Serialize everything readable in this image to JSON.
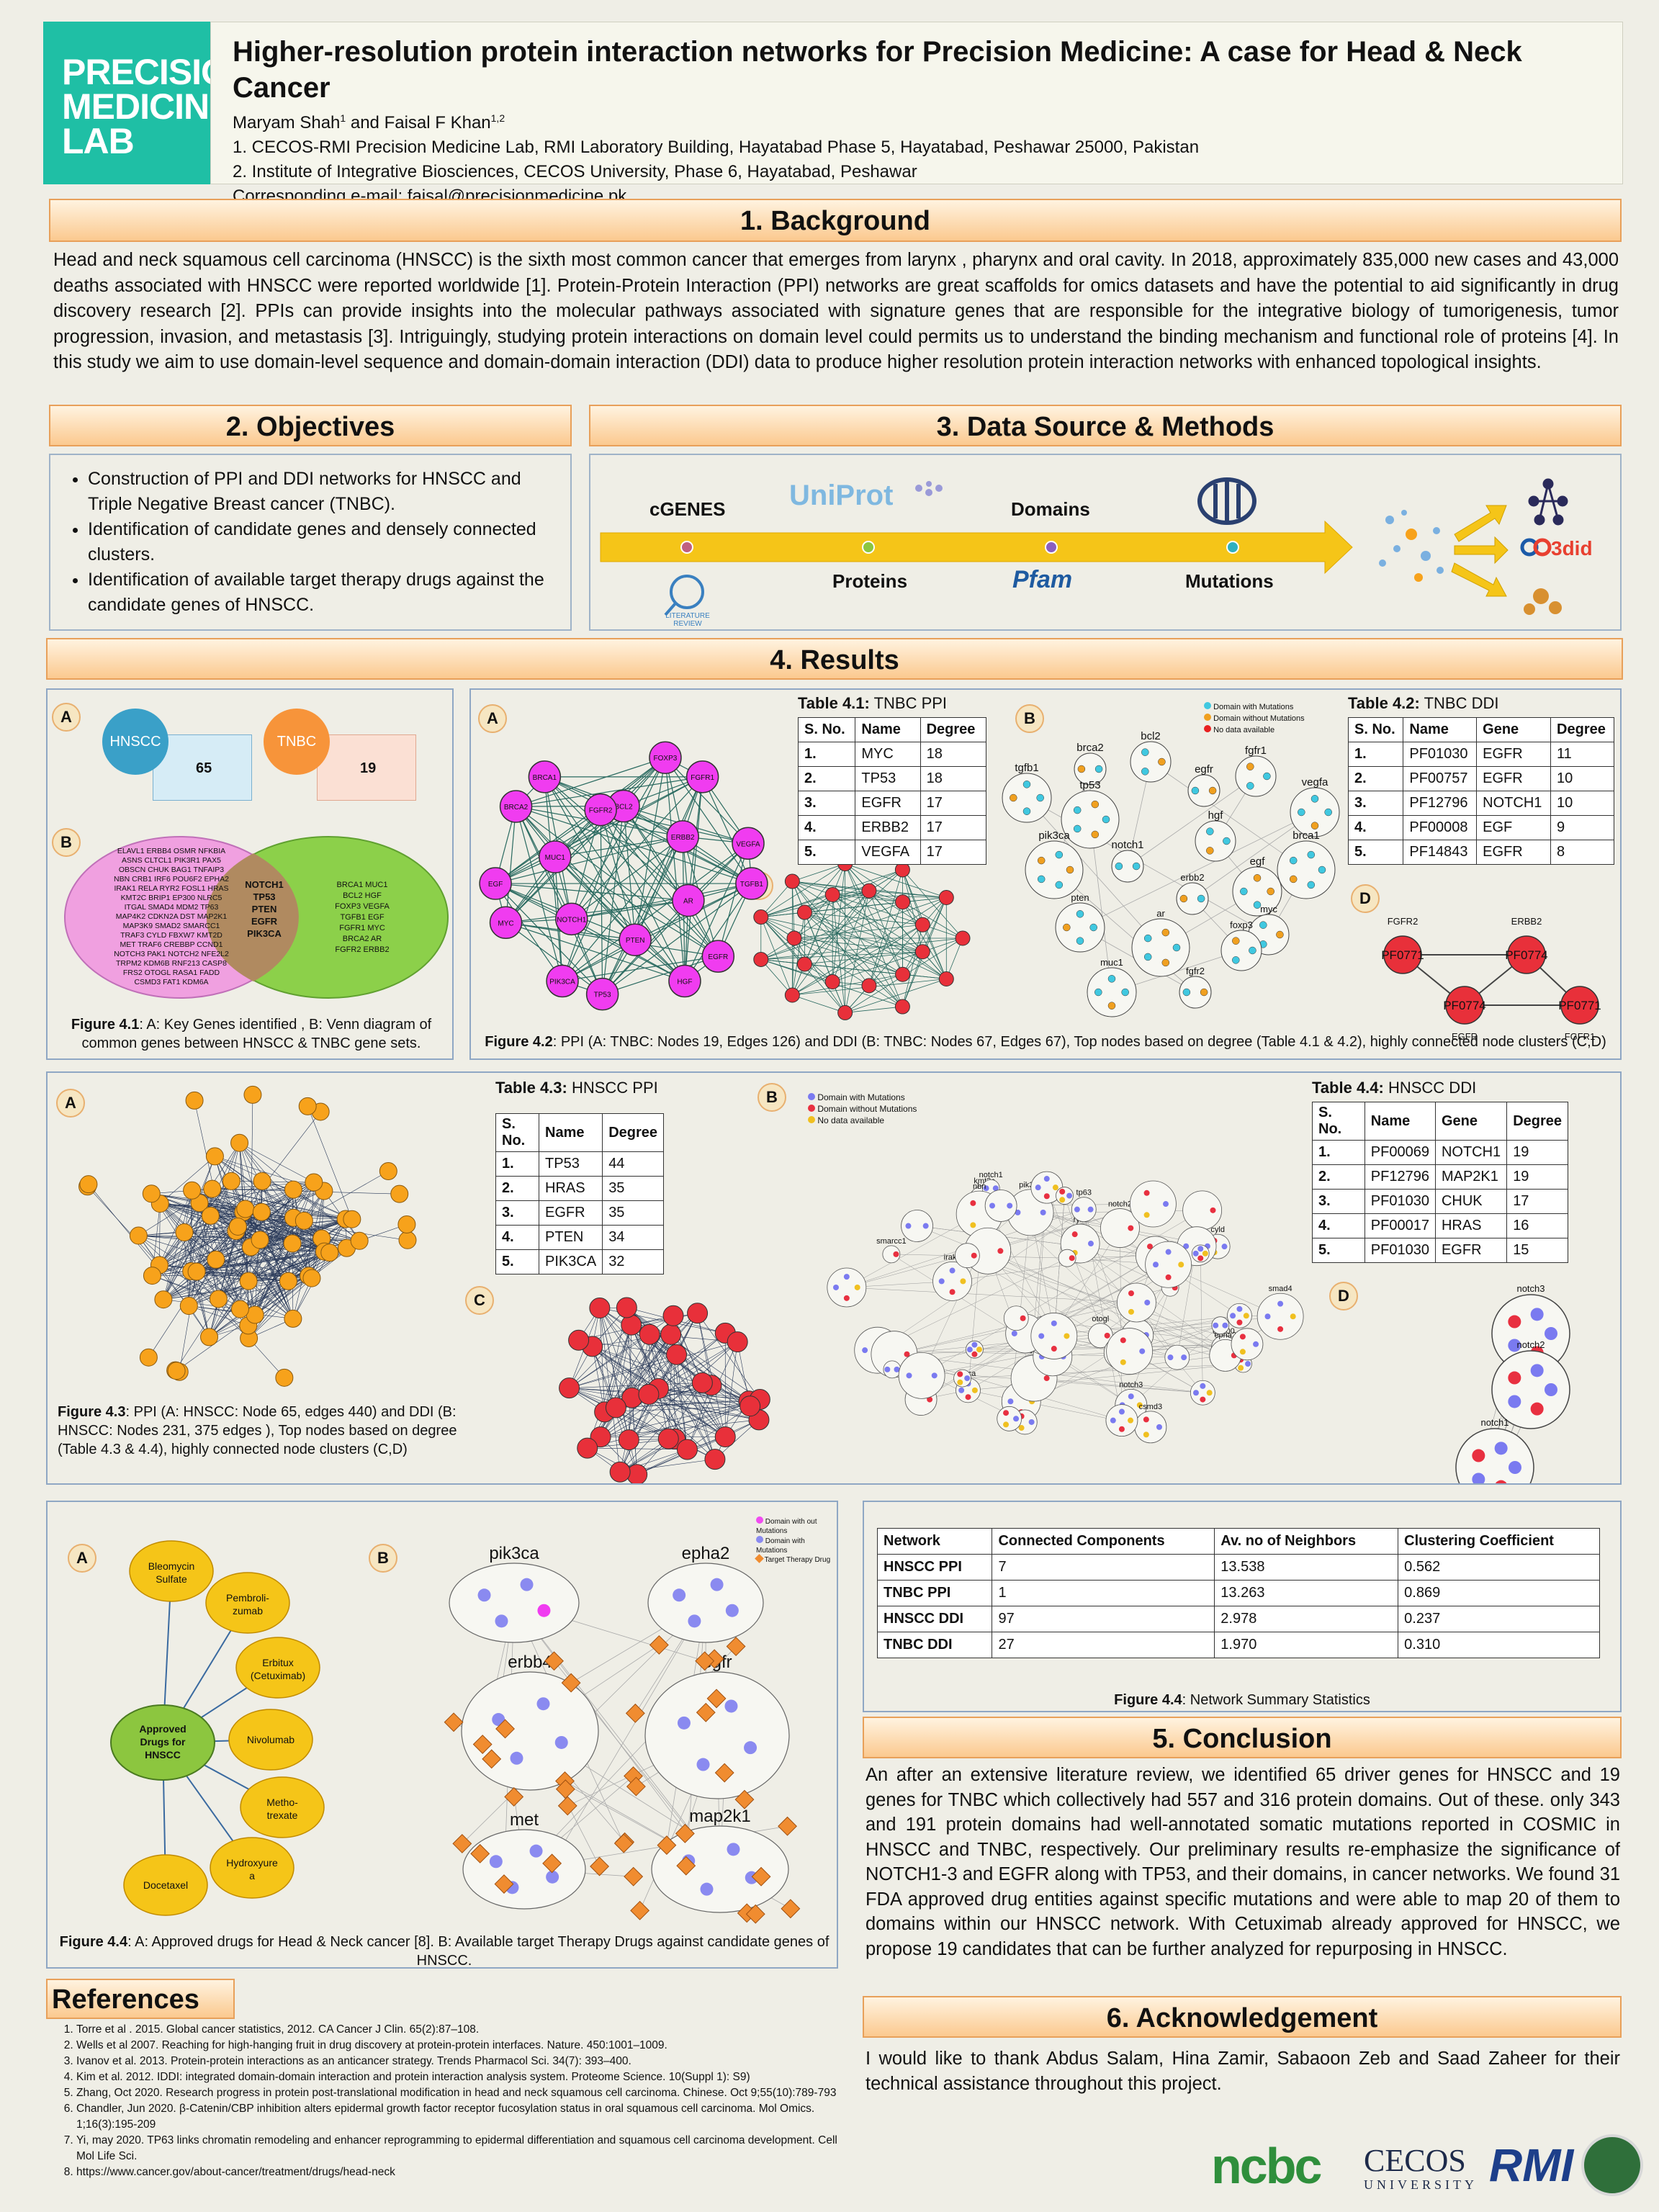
{
  "logo": [
    "PRECISION",
    "MEDICINE",
    "LAB"
  ],
  "header": {
    "title": "Higher-resolution protein interaction networks for Precision Medicine: A case for Head & Neck Cancer",
    "authors": "Maryam Shah",
    "authors_sup1": "1",
    "authors_mid": " and Faisal F Khan",
    "authors_sup2": "1,2",
    "affil1": "1. CECOS-RMI Precision Medicine Lab, RMI Laboratory Building, Hayatabad Phase 5, Hayatabad, Peshawar 25000, Pakistan",
    "affil2": "2. Institute of Integrative Biosciences, CECOS University, Phase 6, Hayatabad, Peshawar",
    "email": "Corresponding e-mail: faisal@precisionmedicine.pk"
  },
  "background": {
    "heading": "1. Background",
    "text": "Head and neck squamous cell carcinoma (HNSCC) is the sixth most common cancer that emerges from larynx , pharynx and oral cavity. In 2018, approximately 835,000 new cases and 43,000 deaths associated with HNSCC were reported worldwide [1]. Protein-Protein Interaction (PPI) networks are great scaffolds for omics datasets and have the potential to aid significantly in drug discovery research [2]. PPIs can provide insights into the molecular pathways associated with signature genes that are responsible for the integrative biology of tumorigenesis, tumor progression, invasion, and metastasis [3]. Intriguingly, studying protein interactions on domain level could permits us to understand the binding mechanism and functional role of proteins [4]. In this study we aim to use domain-level sequence and domain-domain interaction (DDI) data to produce higher resolution protein interaction networks with enhanced topological insights."
  },
  "objectives": {
    "heading": "2. Objectives",
    "items": [
      "Construction of PPI and DDI networks for HNSCC and Triple Negative Breast cancer (TNBC).",
      "Identification of candidate genes and densely connected clusters.",
      "Identification of available target therapy drugs against the candidate genes of HNSCC."
    ]
  },
  "methods": {
    "heading": "3. Data Source & Methods",
    "cgenes": "cGENES",
    "uniprot": "UniProt",
    "domains": "Domains",
    "proteins": "Proteins",
    "pfam": "Pfam",
    "mutations": "Mutations",
    "lit": "LITERATURE REVIEW",
    "did": "3did"
  },
  "results": {
    "heading": "4. Results"
  },
  "fig41": {
    "hnscc": "HNSCC",
    "tnbc": "TNBC",
    "n65": "65",
    "n19": "19",
    "hnscc_genes": [
      "ELAVL1 ERBB4 OSMR NFKBIA",
      "ASNS CLTCL1 PIK3R1 PAX5",
      "OBSCN CHUK BAG1 TNFAIP3",
      "NBN CRB1 IRF6 POU6F2 EPHA2",
      "IRAK1 RELA RYR2 FOSL1 HRAS",
      "KMT2C BRIP1 EP300 NLRC5",
      "ITGAL SMAD4 MDM2 TP63",
      "MAP4K2 CDKN2A DST MAP2K1",
      "MAP3K9 SMAD2 SMARCC1",
      "TRAF3 CYLD FBXW7 KMT2D",
      "MET TRAF6 CREBBP CCND1",
      "NOTCH3 PAK1 NOTCH2 NFE2L2",
      "TRPM2 KDM6B RNF213 CASP8",
      "FRS2 OTOGL RASA1 FADD",
      "CSMD3 FAT1 KDM6A"
    ],
    "common": [
      "NOTCH1",
      "TP53",
      "PTEN",
      "EGFR",
      "PIK3CA"
    ],
    "tnbc_genes": [
      "BRCA1 MUC1",
      "BCL2 HGF",
      "FOXP3 VEGFA",
      "TGFB1 EGF",
      "FGFR1 MYC",
      "BRCA2 AR",
      "FGFR2 ERBB2"
    ],
    "cap_b": "Figure 4.1",
    "cap": ": A: Key Genes identified , B: Venn diagram of common genes between HNSCC & TNBC gene sets."
  },
  "tnbc_nodes": [
    "BCL2",
    "FOXP3",
    "FGFR1",
    "ERBB2",
    "VEGFA",
    "TGFB1",
    "AR",
    "EGFR",
    "HGF",
    "PTEN",
    "TP53",
    "PIK3CA",
    "NOTCH1",
    "MYC",
    "EGF",
    "MUC1",
    "BRCA2",
    "BRCA1",
    "FGFR2"
  ],
  "table41": {
    "title_b": "Table 4.1:",
    "title": " TNBC PPI",
    "head": [
      "S. No.",
      "Name",
      "Degree"
    ],
    "rows": [
      [
        "1.",
        "MYC",
        "18"
      ],
      [
        "2.",
        "TP53",
        "18"
      ],
      [
        "3.",
        "EGFR",
        "17"
      ],
      [
        "4.",
        "ERBB2",
        "17"
      ],
      [
        "5.",
        "VEGFA",
        "17"
      ]
    ]
  },
  "table42": {
    "title_b": "Table 4.2:",
    "title": " TNBC DDI",
    "head": [
      "S. No.",
      "Name",
      "Gene",
      "Degree"
    ],
    "rows": [
      [
        "1.",
        "PF01030",
        "EGFR",
        "11"
      ],
      [
        "2.",
        "PF00757",
        "EGFR",
        "10"
      ],
      [
        "3.",
        "PF12796",
        "NOTCH1",
        "10"
      ],
      [
        "4.",
        "PF00008",
        "EGF",
        "9"
      ],
      [
        "5.",
        "PF14843",
        "EGFR",
        "8"
      ]
    ]
  },
  "fig42": {
    "legend": [
      "Domain with Mutations",
      "Domain without Mutations",
      "No data available"
    ],
    "clusters": [
      "brca2",
      "bcl2",
      "tgfb1",
      "tp53",
      "egfr",
      "fgfr1",
      "vegfa",
      "pik3ca",
      "notch1",
      "hgf",
      "egf",
      "brca1",
      "erbb2",
      "myc",
      "pten",
      "ar",
      "fgfr2",
      "foxp3",
      "muc1"
    ],
    "d_labels": [
      "FGFR2",
      "ERBB2",
      "EGFR",
      "FGFR1"
    ],
    "d_nodes": [
      "PF0771",
      "PF0774",
      "PF0774",
      "PF0771"
    ],
    "cap_b": "Figure 4.2",
    "cap": ": PPI (A: TNBC: Nodes 19, Edges 126) and DDI (B: TNBC: Nodes 67, Edges 67), Top nodes based on degree (Table 4.1 & 4.2), highly connected node clusters (C,D)"
  },
  "table43": {
    "title_b": "Table 4.3:",
    "title": " HNSCC PPI",
    "head": [
      "S. No.",
      "Name",
      "Degree"
    ],
    "rows": [
      [
        "1.",
        "TP53",
        "44"
      ],
      [
        "2.",
        "HRAS",
        "35"
      ],
      [
        "3.",
        "EGFR",
        "35"
      ],
      [
        "4.",
        "PTEN",
        "34"
      ],
      [
        "5.",
        "PIK3CA",
        "32"
      ]
    ]
  },
  "table44": {
    "title_b": "Table 4.4:",
    "title": " HNSCC DDI",
    "head": [
      "S. No.",
      "Name",
      "Gene",
      "Degree"
    ],
    "rows": [
      [
        "1.",
        "PF00069",
        "NOTCH1",
        "19"
      ],
      [
        "2.",
        "PF12796",
        "MAP2K1",
        "19"
      ],
      [
        "3.",
        "PF01030",
        "CHUK",
        "17"
      ],
      [
        "4.",
        "PF00017",
        "HRAS",
        "16"
      ],
      [
        "5.",
        "PF01030",
        "EGFR",
        "15"
      ]
    ]
  },
  "fig43": {
    "legend": [
      "Domain with Mutations",
      "Domain without Mutations",
      "No data available"
    ],
    "clusters": [
      "smarcc1",
      "ep300",
      "kmt2c",
      "dst",
      "crebbp",
      "notch1",
      "cyld",
      "notch3",
      "notch2",
      "pik3ca",
      "map3k9",
      "brca",
      "epha2",
      "egfr",
      "nbn",
      "rasa1",
      "otogl",
      "obscn",
      "ryr2",
      "smad4",
      "itgal",
      "tp63",
      "csmd3",
      "irak1"
    ],
    "d_labels": [
      "notch3",
      "notch2",
      "notch1"
    ],
    "cap_b": "Figure 4.3",
    "cap": ": PPI (A: HNSCC: Node 65, edges 440) and DDI (B: HNSCC: Nodes 231, 375 edges ), Top nodes based on degree (Table 4.3 & 4.4), highly connected node clusters (C,D)"
  },
  "fig44": {
    "center": [
      "Approved",
      "Drugs for",
      "HNSCC"
    ],
    "drugs": [
      "Bleomycin Sulfate",
      "Pembroli- zumab",
      "Erbitux (Cetuximab)",
      "Nivolumab",
      "Metho- trexate",
      "Hydroxyure a",
      "Docetaxel"
    ],
    "legend": [
      "Domain with out Mutations",
      "Domain with Mutations",
      "Target Therapy Drug"
    ],
    "clusters": [
      "pik3ca",
      "epha2",
      "erbb4",
      "egfr",
      "met",
      "map2k1"
    ],
    "cap_b": "Figure 4.4",
    "cap": ": A: Approved drugs for Head & Neck cancer [8]. B: Available target Therapy Drugs against candidate genes of HNSCC."
  },
  "summary": {
    "head": [
      "Network",
      "Connected Components",
      "Av. no of Neighbors",
      "Clustering Coefficient"
    ],
    "rows": [
      [
        "HNSCC PPI",
        "7",
        "13.538",
        "0.562"
      ],
      [
        "TNBC PPI",
        "1",
        "13.263",
        "0.869"
      ],
      [
        "HNSCC DDI",
        "97",
        "2.978",
        "0.237"
      ],
      [
        "TNBC DDI",
        "27",
        "1.970",
        "0.310"
      ]
    ],
    "cap_b": "Figure 4.4",
    "cap": ": Network Summary Statistics"
  },
  "conclusion": {
    "heading": "5. Conclusion",
    "text": "An after an extensive literature review, we identified 65 driver genes for HNSCC and 19 genes for TNBC which collectively had 557 and 316 protein domains. Out of these. only 343 and 191 protein domains had well-annotated somatic mutations reported in COSMIC in HNSCC and TNBC, respectively. Our preliminary results re-emphasize the significance of NOTCH1-3 and EGFR along with TP53, and their domains, in cancer networks. We found 31 FDA approved drug entities against specific mutations and were able to map 20 of them to domains within our HNSCC network. With Cetuximab already approved for HNSCC, we propose 19 candidates that can be further analyzed for repurposing in HNSCC."
  },
  "ack": {
    "heading": "6. Acknowledgement",
    "text": "I would like to thank Abdus Salam, Hina Zamir, Sabaoon Zeb and Saad Zaheer for their technical assistance throughout this project."
  },
  "references": {
    "heading": "References",
    "items": [
      "Torre et al . 2015. Global cancer statistics, 2012. CA Cancer J Clin. 65(2):87–108.",
      "Wells et al 2007. Reaching for high-hanging fruit in drug discovery at protein-protein interfaces. Nature. 450:1001–1009.",
      "Ivanov et al. 2013. Protein-protein interactions as an anticancer strategy. Trends Pharmacol Sci. 34(7): 393–400.",
      "Kim et al. 2012. IDDI: integrated domain-domain interaction and protein interaction analysis system. Proteome Science. 10(Suppl 1): S9)",
      "Zhang, Oct 2020. Research progress in protein post-translational modification in head and neck squamous cell carcinoma. Chinese. Oct 9;55(10):789-793",
      "Chandler, Jun 2020. β-Catenin/CBP inhibition alters epidermal growth factor receptor fucosylation status in oral squamous cell carcinoma. Mol Omics. 1;16(3):195-209",
      "Yi, may 2020. TP63 links chromatin remodeling and enhancer reprogramming to epidermal differentiation and squamous cell carcinoma development. Cell Mol Life Sci.",
      "https://www.cancer.gov/about-cancer/treatment/drugs/head-neck"
    ]
  },
  "footer": {
    "ncbc": "ncbc",
    "cecos": "CECOS",
    "univ": "UNIVERSITY",
    "rmi": "RMI"
  },
  "colors": {
    "teal": "#1fbfa5",
    "magenta": "#f03cf0",
    "red": "#e8303a",
    "orange": "#f7a21b",
    "blue": "#7a7af0",
    "yellow": "#f5c518",
    "green": "#8cc63f"
  }
}
